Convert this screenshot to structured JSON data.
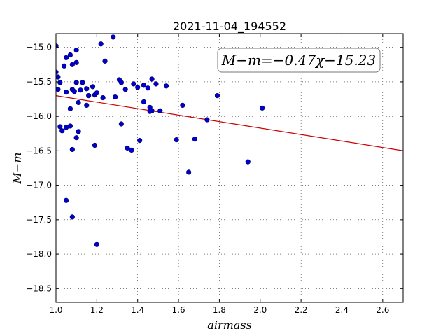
{
  "chart_data": {
    "type": "scatter",
    "title": "2021-11-04_194552",
    "xlabel": "airmass",
    "ylabel": "M−m",
    "xlim": [
      1.0,
      2.7
    ],
    "ylim": [
      -14.8,
      -18.7
    ],
    "x_ticks": [
      "1.0",
      "1.2",
      "1.4",
      "1.6",
      "1.8",
      "2.0",
      "2.2",
      "2.4",
      "2.6"
    ],
    "y_ticks": [
      "−15.0",
      "−15.5",
      "−16.0",
      "−16.5",
      "−17.0",
      "−17.5",
      "−18.0",
      "−18.5"
    ],
    "grid": true,
    "annotation": "M−m=−0.47χ−15.23",
    "annotation_position": "top-right",
    "point_color": "#0000cc",
    "fit_color": "#cc0000",
    "fit": {
      "slope": -0.47,
      "intercept": -15.23
    },
    "points": [
      [
        1.0,
        -14.98
      ],
      [
        1.0,
        -15.36
      ],
      [
        1.01,
        -15.43
      ],
      [
        1.02,
        -15.51
      ],
      [
        1.01,
        -15.61
      ],
      [
        1.04,
        -15.27
      ],
      [
        1.05,
        -15.15
      ],
      [
        1.05,
        -15.65
      ],
      [
        1.07,
        -15.11
      ],
      [
        1.08,
        -15.25
      ],
      [
        1.1,
        -15.04
      ],
      [
        1.1,
        -15.22
      ],
      [
        1.1,
        -15.51
      ],
      [
        1.08,
        -15.61
      ],
      [
        1.09,
        -15.64
      ],
      [
        1.07,
        -15.89
      ],
      [
        1.11,
        -15.8
      ],
      [
        1.13,
        -15.51
      ],
      [
        1.12,
        -15.62
      ],
      [
        1.15,
        -15.6
      ],
      [
        1.16,
        -15.7
      ],
      [
        1.18,
        -15.57
      ],
      [
        1.19,
        -15.69
      ],
      [
        1.2,
        -15.66
      ],
      [
        1.15,
        -15.84
      ],
      [
        1.23,
        -15.73
      ],
      [
        1.22,
        -14.95
      ],
      [
        1.24,
        -15.2
      ],
      [
        1.28,
        -14.85
      ],
      [
        1.29,
        -15.72
      ],
      [
        1.31,
        -15.47
      ],
      [
        1.32,
        -15.51
      ],
      [
        1.34,
        -15.61
      ],
      [
        1.38,
        -15.53
      ],
      [
        1.4,
        -15.58
      ],
      [
        1.43,
        -15.55
      ],
      [
        1.45,
        -15.59
      ],
      [
        1.47,
        -15.46
      ],
      [
        1.49,
        -15.53
      ],
      [
        1.54,
        -15.56
      ],
      [
        1.43,
        -15.79
      ],
      [
        1.46,
        -15.87
      ],
      [
        1.46,
        -15.93
      ],
      [
        1.47,
        -15.92
      ],
      [
        1.51,
        -15.92
      ],
      [
        1.62,
        -15.84
      ],
      [
        1.79,
        -15.7
      ],
      [
        2.01,
        -15.88
      ],
      [
        1.74,
        -16.05
      ],
      [
        1.32,
        -16.11
      ],
      [
        1.02,
        -16.15
      ],
      [
        1.03,
        -16.21
      ],
      [
        1.05,
        -16.16
      ],
      [
        1.07,
        -16.14
      ],
      [
        1.11,
        -16.22
      ],
      [
        1.1,
        -16.31
      ],
      [
        1.08,
        -16.48
      ],
      [
        1.19,
        -16.42
      ],
      [
        1.35,
        -16.46
      ],
      [
        1.37,
        -16.49
      ],
      [
        1.41,
        -16.35
      ],
      [
        1.59,
        -16.34
      ],
      [
        1.68,
        -16.33
      ],
      [
        1.65,
        -16.81
      ],
      [
        1.94,
        -16.66
      ],
      [
        1.05,
        -17.22
      ],
      [
        1.08,
        -17.46
      ],
      [
        1.2,
        -17.86
      ]
    ]
  }
}
